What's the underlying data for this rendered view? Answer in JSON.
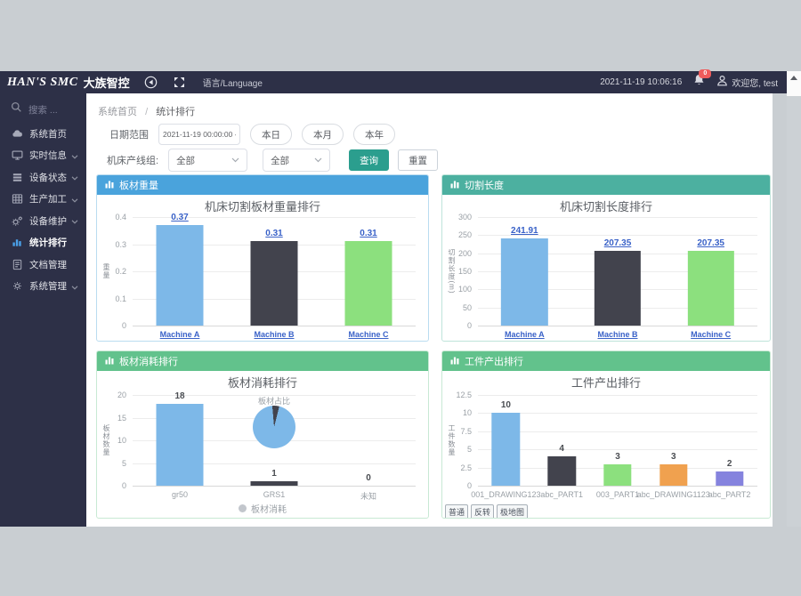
{
  "app": {
    "header": {
      "logo_primary": "HAN'S SMC",
      "logo_secondary": "大族智控",
      "language": "语言/Language",
      "datetime": "2021-11-19 10:06:16",
      "notification_count": "0",
      "welcome": "欢迎您, test"
    },
    "sidebar": {
      "search_placeholder": "搜索 ...",
      "items": [
        {
          "label": "系统首页",
          "icon": "cloud-icon",
          "expandable": false,
          "active": false
        },
        {
          "label": "实时信息",
          "icon": "monitor-icon",
          "expandable": true,
          "active": false
        },
        {
          "label": "设备状态",
          "icon": "server-icon",
          "expandable": true,
          "active": false
        },
        {
          "label": "生产加工",
          "icon": "table-icon",
          "expandable": true,
          "active": false
        },
        {
          "label": "设备维护",
          "icon": "gears-icon",
          "expandable": true,
          "active": false
        },
        {
          "label": "统计排行",
          "icon": "bar-chart-icon",
          "expandable": false,
          "active": true
        },
        {
          "label": "文档管理",
          "icon": "document-icon",
          "expandable": false,
          "active": false
        },
        {
          "label": "系统管理",
          "icon": "gear-icon",
          "expandable": true,
          "active": false
        }
      ]
    },
    "breadcrumb": {
      "home": "系统首页",
      "separator": "/",
      "current": "统计排行"
    },
    "filters": {
      "date_label": "日期范围",
      "date_value": "2021-11-19 00:00:00 - 202",
      "quick_ranges": [
        "本日",
        "本月",
        "本年"
      ],
      "line_label": "机床产线组:",
      "line_select": "全部",
      "machine_select": "全部",
      "search_button": "查询",
      "reset_button": "重置"
    }
  },
  "colors": {
    "header_bar": "#2d3047",
    "accent_blue": "#4aa3dc",
    "accent_teal": "#4cb0a0",
    "accent_green": "#62c28c",
    "query_button": "#2b9e8e",
    "bar_palette": [
      "#7db8e8",
      "#42434d",
      "#8ce07e",
      "#f0a14f",
      "#8583de"
    ]
  },
  "chart_data": [
    {
      "type": "bar",
      "header": "板材重量",
      "title": "机床切割板材重量排行",
      "ylabel": "重量",
      "categories": [
        "Machine A",
        "Machine B",
        "Machine C"
      ],
      "values": [
        0.37,
        0.31,
        0.31
      ],
      "value_labels": [
        "0.37",
        "0.31",
        "0.31"
      ],
      "yticks": [
        "0.4",
        "0.3",
        "0.2",
        "0.1",
        "0"
      ],
      "ymax": 0.4,
      "ylim": [
        0,
        0.4
      ],
      "grid": true,
      "bar_colors": [
        "#7db8e8",
        "#42434d",
        "#8ce07e"
      ],
      "label_style": "link",
      "header_color": "#4aa3dc",
      "border_color": "#badcf0"
    },
    {
      "type": "bar",
      "header": "切割长度",
      "title": "机床切割长度排行",
      "ylabel": "切割长度(m)",
      "categories": [
        "Machine A",
        "Machine B",
        "Machine C"
      ],
      "values": [
        241.91,
        207.35,
        207.35
      ],
      "value_labels": [
        "241.91",
        "207.35",
        "207.35"
      ],
      "yticks": [
        "300",
        "250",
        "200",
        "150",
        "100",
        "50",
        "0"
      ],
      "ymax": 300,
      "ylim": [
        0,
        300
      ],
      "grid": true,
      "bar_colors": [
        "#7db8e8",
        "#42434d",
        "#8ce07e"
      ],
      "label_style": "link",
      "header_color": "#4cb0a0",
      "border_color": "#bfe4da"
    },
    {
      "type": "bar",
      "header": "板材消耗排行",
      "title": "板材消耗排行",
      "ylabel": "板材数量",
      "categories": [
        "gr50",
        "GRS1",
        "未知"
      ],
      "values": [
        18,
        1,
        0
      ],
      "value_labels": [
        "18",
        "1",
        "0"
      ],
      "yticks": [
        "20",
        "15",
        "10",
        "5",
        "0"
      ],
      "ymax": 20,
      "ylim": [
        0,
        20
      ],
      "grid": true,
      "bar_colors": [
        "#7db8e8",
        "#42434d",
        "#8ce07e"
      ],
      "label_style": "plain",
      "header_color": "#62c28c",
      "border_color": "#c8e9d4",
      "pie": {
        "title": "板材占比",
        "slices": [
          {
            "value": 18,
            "color": "#7db8e8"
          },
          {
            "value": 1,
            "color": "#42434d"
          }
        ]
      },
      "legend": [
        {
          "label": "板材消耗",
          "color": "#c2c6cc"
        }
      ]
    },
    {
      "type": "bar",
      "header": "工件产出排行",
      "title": "工件产出排行",
      "ylabel": "工件数量",
      "categories": [
        "001_DRAWING123",
        "abc_PART1",
        "003_PART1",
        "abc_DRAWING1123",
        "abc_PART2"
      ],
      "values": [
        10,
        4,
        3,
        3,
        2
      ],
      "value_labels": [
        "10",
        "4",
        "3",
        "3",
        "2"
      ],
      "yticks": [
        "12.5",
        "10",
        "7.5",
        "5",
        "2.5",
        "0"
      ],
      "ymax": 12.5,
      "ylim": [
        0,
        12.5
      ],
      "grid": true,
      "bar_colors": [
        "#7db8e8",
        "#42434d",
        "#8ce07e",
        "#f0a14f",
        "#8583de"
      ],
      "label_style": "plain",
      "header_color": "#62c28c",
      "border_color": "#c8e9d4",
      "footer_buttons": [
        "普通",
        "反转",
        "极地图"
      ]
    }
  ]
}
